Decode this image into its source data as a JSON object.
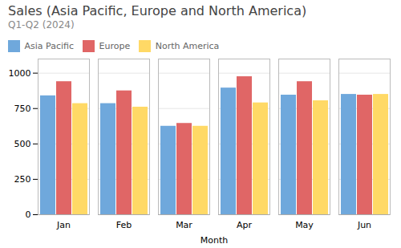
{
  "chart_data": {
    "type": "bar",
    "title": "Sales (Asia Pacific, Europe and North America)",
    "subtitle": "Q1-Q2 (2024)",
    "xlabel": "Month",
    "categories": [
      "Jan",
      "Feb",
      "Mar",
      "Apr",
      "May",
      "Jun"
    ],
    "series": [
      {
        "name": "Asia Pacific",
        "color": "#6fa8dc",
        "values": [
          840,
          785,
          625,
          895,
          845,
          850
        ]
      },
      {
        "name": "Europe",
        "color": "#e06666",
        "values": [
          940,
          875,
          645,
          975,
          940,
          845
        ]
      },
      {
        "name": "North America",
        "color": "#ffd966",
        "values": [
          785,
          760,
          625,
          790,
          805,
          850
        ]
      }
    ],
    "ylim": [
      0,
      1100
    ],
    "yticks": [
      0,
      250,
      500,
      750,
      1000
    ],
    "grid": true,
    "legend": "top"
  }
}
